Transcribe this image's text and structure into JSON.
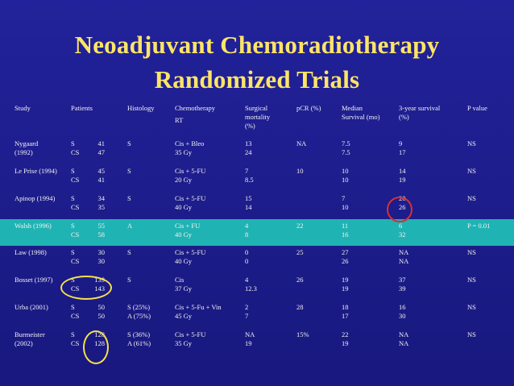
{
  "title_line1": "Neoadjuvant Chemoradiotherapy",
  "title_line2": "Randomized Trials",
  "headers": {
    "study": "Study",
    "patients": "Patients",
    "histology": "Histology",
    "chemotherapy_l1": "Chemotherapy",
    "chemotherapy_l2": "RT",
    "surgical_l1": "Surgical",
    "surgical_l2": "mortality",
    "surgical_l3": "(%)",
    "pcr": "pCR (%)",
    "median_l1": "Median",
    "median_l2": "Survival (mo)",
    "survival_l1": "3-year survival",
    "survival_l2": "(%)",
    "pvalue": "P value"
  },
  "rows": [
    {
      "study1": "Nygaard",
      "study2": "(1992)",
      "arm1": "S",
      "arm2": "CS",
      "n1": "41",
      "n2": "47",
      "hist1": "S",
      "hist2": "",
      "chemo1": "Cis + Bleo",
      "chemo2": "35 Gy",
      "mort1": "13",
      "mort2": "24",
      "pcr": "NA",
      "med1": "7.5",
      "med2": "7.5",
      "surv1": "9",
      "surv2": "17",
      "p": "NS",
      "highlight": false
    },
    {
      "study1": "Le Prise (1994)",
      "study2": "",
      "arm1": "S",
      "arm2": "CS",
      "n1": "45",
      "n2": "41",
      "hist1": "S",
      "hist2": "",
      "chemo1": "Cis + 5-FU",
      "chemo2": "20 Gy",
      "mort1": "7",
      "mort2": "8.5",
      "pcr": "10",
      "med1": "10",
      "med2": "10",
      "surv1": "14",
      "surv2": "19",
      "p": "NS",
      "highlight": false
    },
    {
      "study1": "Apinop (1994)",
      "study2": "",
      "arm1": "S",
      "arm2": "CS",
      "n1": "34",
      "n2": "35",
      "hist1": "S",
      "hist2": "",
      "chemo1": "Cis + 5-FU",
      "chemo2": "40 Gy",
      "mort1": "15",
      "mort2": "14",
      "pcr": "",
      "med1": "7",
      "med2": "10",
      "surv1": "20",
      "surv2": "26",
      "p": "NS",
      "highlight": false
    },
    {
      "study1": "Walsh (1996)",
      "study2": "",
      "arm1": "S",
      "arm2": "CS",
      "n1": "55",
      "n2": "58",
      "hist1": "A",
      "hist2": "",
      "chemo1": "Cis + FU",
      "chemo2": "40 Gy",
      "mort1": "4",
      "mort2": "8",
      "pcr": "22",
      "med1": "11",
      "med2": "16",
      "surv1": "6",
      "surv2": "32",
      "p": "P = 0.01",
      "highlight": true
    },
    {
      "study1": "Law (1998)",
      "study2": "",
      "arm1": "S",
      "arm2": "CS",
      "n1": "30",
      "n2": "30",
      "hist1": "S",
      "hist2": "",
      "chemo1": "Cis + 5-FU",
      "chemo2": "40 Gy",
      "mort1": "0",
      "mort2": "0",
      "pcr": "25",
      "med1": "27",
      "med2": "26",
      "surv1": "NA",
      "surv2": "NA",
      "p": "NS",
      "highlight": false
    },
    {
      "study1": "Bosset (1997)",
      "study2": "",
      "arm1": "S",
      "arm2": "CS",
      "n1": "139",
      "n2": "143",
      "hist1": "S",
      "hist2": "",
      "chemo1": "Cis",
      "chemo2": "37 Gy",
      "mort1": "4",
      "mort2": "12.3",
      "pcr": "26",
      "med1": "19",
      "med2": "19",
      "surv1": "37",
      "surv2": "39",
      "p": "NS",
      "highlight": false
    },
    {
      "study1": "Urba (2001)",
      "study2": "",
      "arm1": "S",
      "arm2": "CS",
      "n1": "50",
      "n2": "50",
      "hist1": "S (25%)",
      "hist2": "A (75%)",
      "chemo1": "Cis + 5-Fu + Vin",
      "chemo2": "45 Gy",
      "mort1": "2",
      "mort2": "7",
      "pcr": "28",
      "med1": "18",
      "med2": "17",
      "surv1": "16",
      "surv2": "30",
      "p": "NS",
      "highlight": false
    },
    {
      "study1": "Burmeister",
      "study2": "(2002)",
      "arm1": "S",
      "arm2": "CS",
      "n1": "128",
      "n2": "128",
      "hist1": "S (36%)",
      "hist2": "A (61%)",
      "chemo1": "Cis + 5-FU",
      "chemo2": "35 Gy",
      "mort1": "NA",
      "mort2": "19",
      "pcr": "15%",
      "med1": "22",
      "med2": "19",
      "surv1": "NA",
      "surv2": "NA",
      "p": "NS",
      "highlight": false
    }
  ]
}
